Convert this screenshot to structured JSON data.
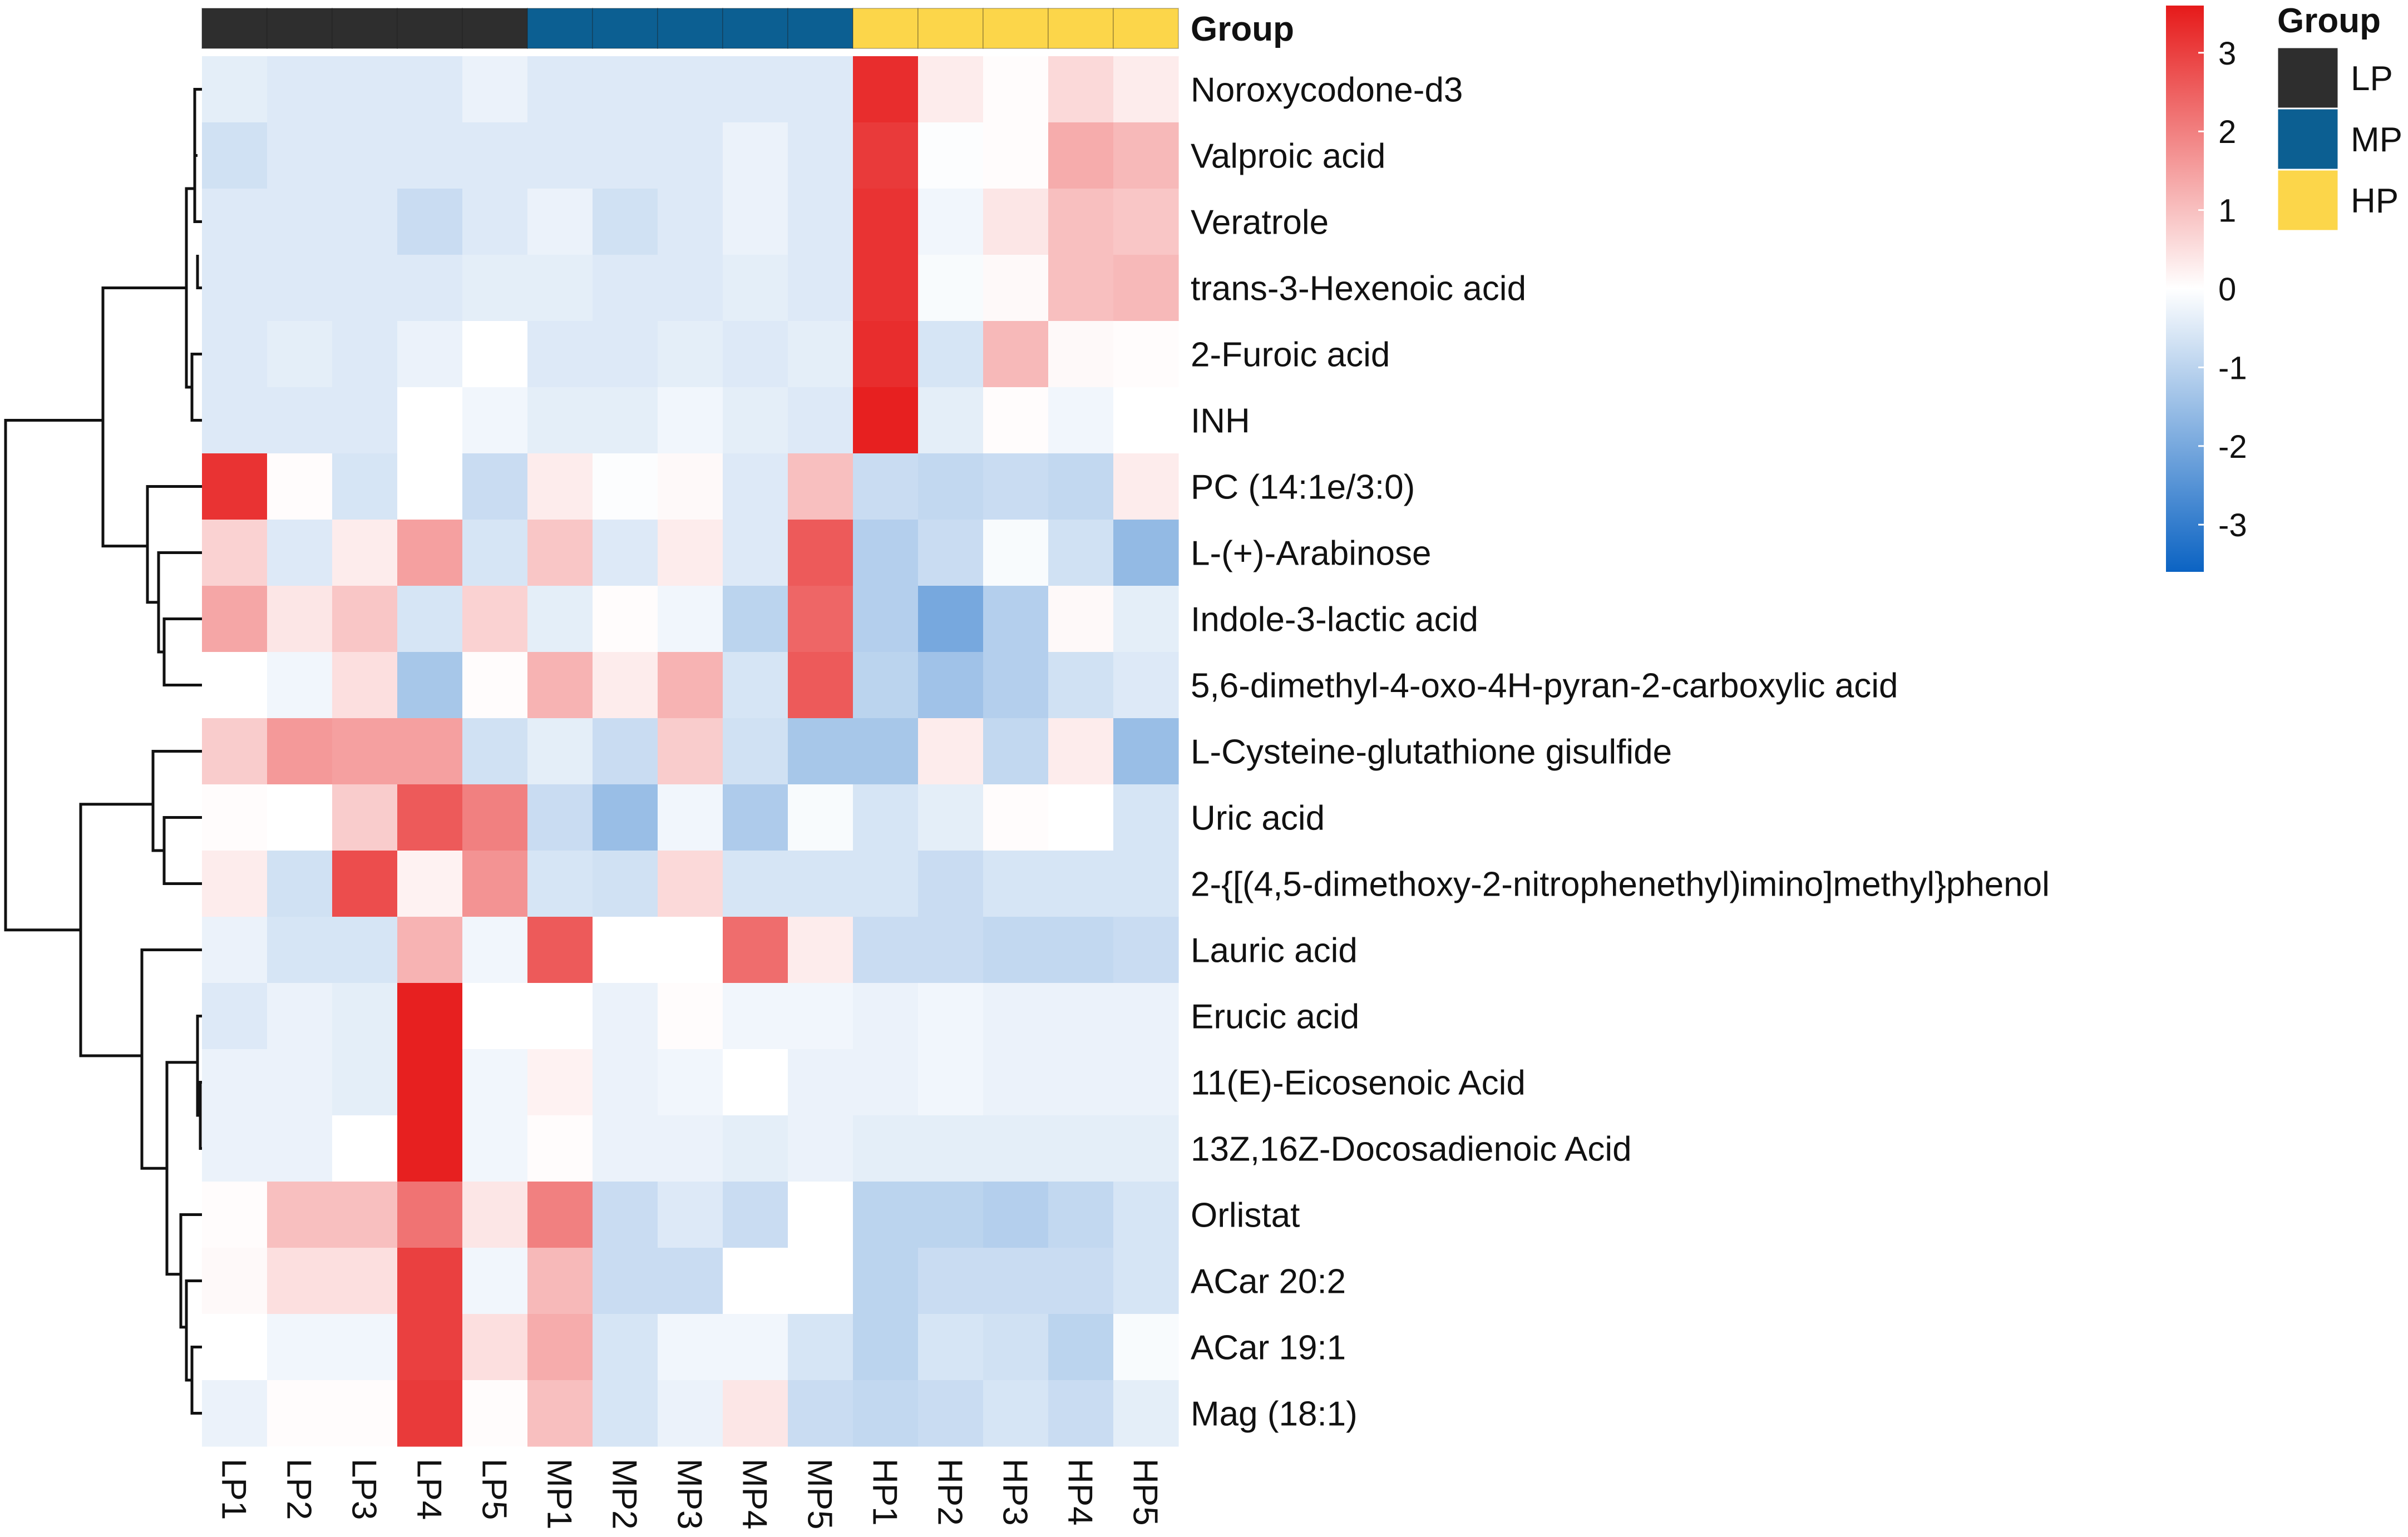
{
  "chart_data": {
    "type": "heatmap",
    "columns": [
      "LP1",
      "LP2",
      "LP3",
      "LP4",
      "LP5",
      "MP1",
      "MP2",
      "MP3",
      "MP4",
      "MP5",
      "HP1",
      "HP2",
      "HP3",
      "HP4",
      "HP5"
    ],
    "column_groups": [
      "LP",
      "LP",
      "LP",
      "LP",
      "LP",
      "MP",
      "MP",
      "MP",
      "MP",
      "MP",
      "HP",
      "HP",
      "HP",
      "HP",
      "HP"
    ],
    "rows": [
      "Noroxycodone-d3",
      "Valproic acid",
      "Veratrole",
      "trans-3-Hexenoic acid",
      "2-Furoic acid",
      "INH",
      "PC (14:1e/3:0)",
      "L-(+)-Arabinose",
      "Indole-3-lactic acid",
      "5,6-dimethyl-4-oxo-4H-pyran-2-carboxylic acid",
      "L-Cysteine-glutathione gisulfide",
      "Uric acid",
      "2-{[(4,5-dimethoxy-2-nitrophenethyl)imino]methyl}phenol",
      "Lauric acid",
      "Erucic acid",
      "11(E)-Eicosenoic Acid",
      "13Z,16Z-Docosadienoic Acid",
      "Orlistat",
      "ACar 20:2",
      "ACar 19:1",
      "Mag (18:1)"
    ],
    "values": [
      [
        -0.4,
        -0.5,
        -0.5,
        -0.5,
        -0.3,
        -0.5,
        -0.5,
        -0.5,
        -0.5,
        -0.5,
        3.3,
        0.3,
        0.05,
        0.6,
        0.3
      ],
      [
        -0.7,
        -0.5,
        -0.5,
        -0.5,
        -0.5,
        -0.5,
        -0.5,
        -0.5,
        -0.3,
        -0.5,
        3.1,
        -0.05,
        0.05,
        1.3,
        1.1
      ],
      [
        -0.5,
        -0.5,
        -0.5,
        -0.8,
        -0.5,
        -0.3,
        -0.7,
        -0.5,
        -0.3,
        -0.5,
        3.2,
        -0.2,
        0.4,
        1.0,
        0.9
      ],
      [
        -0.5,
        -0.5,
        -0.5,
        -0.5,
        -0.4,
        -0.4,
        -0.5,
        -0.5,
        -0.4,
        -0.5,
        3.2,
        -0.1,
        0.1,
        1.0,
        1.1
      ],
      [
        -0.5,
        -0.4,
        -0.5,
        -0.3,
        0.0,
        -0.5,
        -0.5,
        -0.4,
        -0.5,
        -0.4,
        3.3,
        -0.6,
        1.1,
        0.1,
        0.05
      ],
      [
        -0.5,
        -0.5,
        -0.5,
        0.0,
        -0.2,
        -0.4,
        -0.4,
        -0.2,
        -0.4,
        -0.5,
        3.5,
        -0.4,
        0.05,
        -0.2,
        0.0
      ],
      [
        3.2,
        0.05,
        -0.6,
        0.0,
        -0.8,
        0.3,
        -0.05,
        0.1,
        -0.5,
        1.0,
        -0.8,
        -0.9,
        -0.8,
        -0.9,
        0.3
      ],
      [
        0.7,
        -0.5,
        0.3,
        1.5,
        -0.6,
        0.9,
        -0.5,
        0.3,
        -0.5,
        2.6,
        -1.1,
        -0.8,
        -0.1,
        -0.7,
        -1.6
      ],
      [
        1.4,
        0.4,
        0.9,
        -0.6,
        0.7,
        -0.4,
        0.05,
        -0.2,
        -1.0,
        2.4,
        -1.1,
        -2.0,
        -1.1,
        0.1,
        -0.4
      ],
      [
        0.0,
        -0.2,
        0.5,
        -1.3,
        0.05,
        1.2,
        0.3,
        1.2,
        -0.6,
        2.6,
        -1.0,
        -1.4,
        -1.1,
        -0.7,
        -0.5
      ],
      [
        0.8,
        1.6,
        1.5,
        1.5,
        -0.7,
        -0.4,
        -0.8,
        0.8,
        -0.7,
        -1.3,
        -1.3,
        0.3,
        -0.9,
        0.3,
        -1.5
      ],
      [
        0.05,
        0.0,
        0.8,
        2.6,
        2.0,
        -0.8,
        -1.5,
        -0.2,
        -1.2,
        -0.1,
        -0.6,
        -0.4,
        0.05,
        0.0,
        -0.6
      ],
      [
        0.3,
        -0.7,
        2.8,
        0.2,
        1.7,
        -0.6,
        -0.7,
        0.6,
        -0.6,
        -0.6,
        -0.6,
        -0.8,
        -0.6,
        -0.6,
        -0.6
      ],
      [
        -0.3,
        -0.6,
        -0.6,
        1.2,
        -0.2,
        2.6,
        0.0,
        0.0,
        2.3,
        0.3,
        -0.8,
        -0.8,
        -0.9,
        -0.9,
        -0.8
      ],
      [
        -0.5,
        -0.3,
        -0.4,
        3.5,
        0.0,
        0.0,
        -0.3,
        0.05,
        -0.2,
        -0.2,
        -0.3,
        -0.2,
        -0.3,
        -0.3,
        -0.3
      ],
      [
        -0.3,
        -0.3,
        -0.4,
        3.5,
        -0.2,
        0.2,
        -0.3,
        -0.2,
        0.0,
        -0.3,
        -0.3,
        -0.2,
        -0.3,
        -0.3,
        -0.3
      ],
      [
        -0.3,
        -0.3,
        0.0,
        3.5,
        -0.2,
        0.05,
        -0.3,
        -0.3,
        -0.4,
        -0.3,
        -0.4,
        -0.4,
        -0.4,
        -0.4,
        -0.4
      ],
      [
        0.05,
        1.0,
        1.0,
        2.2,
        0.4,
        2.0,
        -0.8,
        -0.5,
        -0.8,
        0.0,
        -1.0,
        -1.0,
        -1.1,
        -0.9,
        -0.6
      ],
      [
        0.1,
        0.5,
        0.5,
        3.0,
        -0.2,
        1.1,
        -0.8,
        -0.8,
        0.0,
        0.0,
        -1.0,
        -0.8,
        -0.8,
        -0.8,
        -0.6
      ],
      [
        0.0,
        -0.2,
        -0.2,
        3.0,
        0.5,
        1.3,
        -0.6,
        -0.2,
        -0.2,
        -0.6,
        -1.0,
        -0.6,
        -0.7,
        -1.0,
        -0.1
      ],
      [
        -0.3,
        0.05,
        0.05,
        3.1,
        0.05,
        1.0,
        -0.6,
        -0.3,
        0.4,
        -0.8,
        -0.9,
        -0.8,
        -0.6,
        -0.8,
        -0.4
      ]
    ],
    "annotation_title": "Group",
    "legend": {
      "title": "Group",
      "items": [
        {
          "label": "LP",
          "color": "#2e2e2e"
        },
        {
          "label": "MP",
          "color": "#0c5f92"
        },
        {
          "label": "HP",
          "color": "#fcd64a"
        }
      ]
    },
    "colorbar": {
      "min": -3.6,
      "max": 3.6,
      "ticks": [
        "3",
        "2",
        "1",
        "0",
        "-1",
        "-2",
        "-3"
      ],
      "low_color": "#0b63c3",
      "mid_color": "#ffffff",
      "high_color": "#e61a1a"
    }
  }
}
